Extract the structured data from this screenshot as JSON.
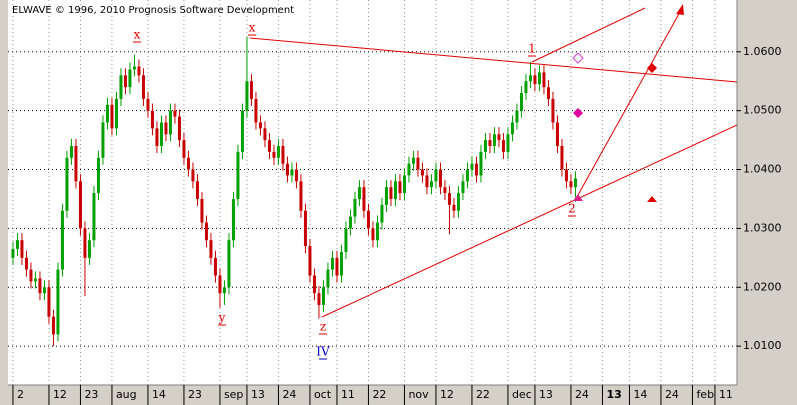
{
  "chart_data": {
    "type": "candlestick",
    "title": "ELWAVE © 1996, 2010 Prognosis Software Development",
    "annotations": [
      "x",
      "y",
      "x",
      "z",
      "IV",
      "1",
      "2"
    ],
    "up_color": "#00a000",
    "down_color": "#c80000",
    "grid": true,
    "xlim": [
      -1.1,
      160.9
    ],
    "xticks": [
      {
        "value": 0,
        "label": "2"
      },
      {
        "value": 8,
        "label": "12"
      },
      {
        "value": 15,
        "label": "23"
      },
      {
        "value": 22,
        "label": "aug"
      },
      {
        "value": 30,
        "label": "14"
      },
      {
        "value": 38,
        "label": "23"
      },
      {
        "value": 46,
        "label": "sep"
      },
      {
        "value": 52,
        "label": "13"
      },
      {
        "value": 59,
        "label": "24"
      },
      {
        "value": 66,
        "label": "oct"
      },
      {
        "value": 72,
        "label": "11"
      },
      {
        "value": 79,
        "label": "22"
      },
      {
        "value": 87,
        "label": "nov"
      },
      {
        "value": 94,
        "label": "12"
      },
      {
        "value": 102,
        "label": "22"
      },
      {
        "value": 110,
        "label": "dec"
      },
      {
        "value": 116,
        "label": "13"
      },
      {
        "value": 124,
        "label": "24"
      },
      {
        "value": 131,
        "label": "13"
      },
      {
        "value": 137,
        "label": "14"
      },
      {
        "value": 144,
        "label": "24"
      },
      {
        "value": 151,
        "label": "feb"
      },
      {
        "value": 156,
        "label": "11"
      }
    ],
    "ylim": [
      1.0034,
      1.0688
    ],
    "yticks": [
      {
        "value": 1.01,
        "label": "1.0100"
      },
      {
        "value": 1.02,
        "label": "1.0200"
      },
      {
        "value": 1.03,
        "label": "1.0300"
      },
      {
        "value": 1.04,
        "label": "1.0400"
      },
      {
        "value": 1.05,
        "label": "1.0500"
      },
      {
        "value": 1.06,
        "label": "1.0600"
      }
    ],
    "x": [
      0,
      1,
      2,
      3,
      4,
      5,
      6,
      7,
      8,
      9,
      10,
      11,
      12,
      13,
      14,
      15,
      16,
      17,
      18,
      19,
      20,
      21,
      22,
      23,
      24,
      25,
      26,
      27,
      28,
      29,
      30,
      31,
      32,
      33,
      34,
      35,
      36,
      37,
      38,
      39,
      40,
      41,
      42,
      43,
      44,
      45,
      46,
      47,
      48,
      49,
      50,
      51,
      52,
      53,
      54,
      55,
      56,
      57,
      58,
      59,
      60,
      61,
      62,
      63,
      64,
      65,
      66,
      67,
      68,
      69,
      70,
      71,
      72,
      73,
      74,
      75,
      76,
      77,
      78,
      79,
      80,
      81,
      82,
      83,
      84,
      85,
      86,
      87,
      88,
      89,
      90,
      91,
      92,
      93,
      94,
      95,
      96,
      97,
      98,
      99,
      100,
      101,
      102,
      103,
      104,
      105,
      106,
      107,
      108,
      109,
      110,
      111,
      112,
      113,
      114,
      115,
      116,
      117,
      118,
      119,
      120,
      121,
      122,
      123,
      124,
      125
    ],
    "open": [
      1.025,
      1.0265,
      1.028,
      1.025,
      1.023,
      1.021,
      1.0215,
      1.019,
      1.02,
      1.015,
      1.012,
      1.023,
      1.033,
      1.042,
      1.044,
      1.038,
      1.03,
      1.025,
      1.028,
      1.036,
      1.042,
      1.048,
      1.051,
      1.047,
      1.052,
      1.056,
      1.054,
      1.057,
      1.0575,
      1.056,
      1.052,
      1.05,
      1.047,
      1.044,
      1.048,
      1.046,
      1.05,
      1.049,
      1.045,
      1.042,
      1.04,
      1.038,
      1.035,
      1.031,
      1.028,
      1.025,
      1.022,
      1.019,
      1.02,
      1.028,
      1.035,
      1.043,
      1.05,
      1.055,
      1.052,
      1.048,
      1.047,
      1.045,
      1.043,
      1.042,
      1.044,
      1.041,
      1.039,
      1.04,
      1.038,
      1.033,
      1.027,
      1.022,
      1.019,
      1.017,
      1.02,
      1.023,
      1.025,
      1.022,
      1.026,
      1.03,
      1.032,
      1.035,
      1.037,
      1.033,
      1.03,
      1.028,
      1.031,
      1.034,
      1.037,
      1.035,
      1.038,
      1.036,
      1.039,
      1.041,
      1.042,
      1.04,
      1.039,
      1.037,
      1.038,
      1.04,
      1.037,
      1.036,
      1.034,
      1.033,
      1.036,
      1.038,
      1.04,
      1.041,
      1.039,
      1.043,
      1.045,
      1.044,
      1.046,
      1.045,
      1.043,
      1.046,
      1.048,
      1.05,
      1.053,
      1.055,
      1.056,
      1.0545,
      1.0565,
      1.054,
      1.052,
      1.048,
      1.044,
      1.04,
      1.038,
      1.037
    ],
    "high": [
      1.0277,
      1.0292,
      1.0292,
      1.0262,
      1.0242,
      1.0227,
      1.0227,
      1.0212,
      1.0212,
      1.0162,
      1.0242,
      1.0342,
      1.0432,
      1.0452,
      1.0452,
      1.0392,
      1.0312,
      1.0292,
      1.0372,
      1.0432,
      1.0492,
      1.0522,
      1.0522,
      1.0532,
      1.0572,
      1.0572,
      1.0582,
      1.0595,
      1.0587,
      1.0572,
      1.0532,
      1.0512,
      1.0482,
      1.0492,
      1.0492,
      1.0512,
      1.0512,
      1.0502,
      1.0462,
      1.0432,
      1.0412,
      1.0392,
      1.0362,
      1.0322,
      1.0292,
      1.0262,
      1.0232,
      1.0212,
      1.0292,
      1.0362,
      1.0442,
      1.0512,
      1.0625,
      1.0562,
      1.0532,
      1.0492,
      1.0482,
      1.0462,
      1.0442,
      1.0452,
      1.0452,
      1.0422,
      1.0412,
      1.0412,
      1.0392,
      1.0342,
      1.0282,
      1.0232,
      1.0202,
      1.0212,
      1.0242,
      1.0262,
      1.0262,
      1.0272,
      1.0312,
      1.0332,
      1.0362,
      1.0382,
      1.0382,
      1.0342,
      1.0312,
      1.0322,
      1.0352,
      1.0382,
      1.0382,
      1.0392,
      1.0392,
      1.0402,
      1.0422,
      1.0432,
      1.0432,
      1.0412,
      1.0402,
      1.0392,
      1.0412,
      1.0412,
      1.0382,
      1.0372,
      1.0352,
      1.0372,
      1.0392,
      1.0412,
      1.0422,
      1.0422,
      1.0442,
      1.0462,
      1.0462,
      1.0472,
      1.0472,
      1.0462,
      1.0472,
      1.0492,
      1.0512,
      1.0542,
      1.0562,
      1.0583,
      1.0572,
      1.0577,
      1.0577,
      1.0552,
      1.0532,
      1.0492,
      1.0452,
      1.0412,
      1.0392,
      1.0397
    ],
    "low": [
      1.0238,
      1.0253,
      1.0238,
      1.0218,
      1.0198,
      1.0198,
      1.0178,
      1.0178,
      1.0138,
      1.01,
      1.0108,
      1.0218,
      1.0318,
      1.0408,
      1.0368,
      1.0288,
      1.0185,
      1.0238,
      1.0268,
      1.0348,
      1.0408,
      1.0468,
      1.0458,
      1.0458,
      1.0508,
      1.0528,
      1.0528,
      1.0558,
      1.0548,
      1.0508,
      1.0488,
      1.0458,
      1.0428,
      1.0428,
      1.0448,
      1.0448,
      1.0478,
      1.0438,
      1.0408,
      1.0388,
      1.0368,
      1.0338,
      1.0298,
      1.0268,
      1.0238,
      1.0208,
      1.0165,
      1.017,
      1.0188,
      1.0268,
      1.0338,
      1.0418,
      1.0488,
      1.0508,
      1.0468,
      1.0458,
      1.0438,
      1.0418,
      1.0408,
      1.0408,
      1.0398,
      1.0378,
      1.0378,
      1.0368,
      1.0318,
      1.0258,
      1.0208,
      1.0178,
      1.0147,
      1.0158,
      1.0188,
      1.0218,
      1.0208,
      1.0208,
      1.0248,
      1.0288,
      1.0308,
      1.0338,
      1.0318,
      1.0288,
      1.0268,
      1.0268,
      1.0298,
      1.0328,
      1.0338,
      1.0338,
      1.0348,
      1.0348,
      1.0378,
      1.0398,
      1.0388,
      1.0378,
      1.0358,
      1.0358,
      1.0368,
      1.0358,
      1.0348,
      1.029,
      1.0318,
      1.0318,
      1.0348,
      1.0368,
      1.0388,
      1.0378,
      1.0378,
      1.0418,
      1.0428,
      1.0428,
      1.0438,
      1.0418,
      1.0418,
      1.0448,
      1.0468,
      1.0488,
      1.0518,
      1.0538,
      1.0533,
      1.0533,
      1.0528,
      1.0508,
      1.0468,
      1.0428,
      1.0388,
      1.0368,
      1.0358,
      1.0345
    ],
    "close": [
      1.0265,
      1.028,
      1.025,
      1.023,
      1.021,
      1.0215,
      1.019,
      1.02,
      1.015,
      1.012,
      1.023,
      1.033,
      1.042,
      1.044,
      1.038,
      1.03,
      1.025,
      1.028,
      1.036,
      1.042,
      1.048,
      1.051,
      1.047,
      1.052,
      1.056,
      1.054,
      1.057,
      1.0575,
      1.056,
      1.052,
      1.05,
      1.047,
      1.044,
      1.048,
      1.046,
      1.05,
      1.049,
      1.045,
      1.042,
      1.04,
      1.038,
      1.035,
      1.031,
      1.028,
      1.025,
      1.022,
      1.019,
      1.02,
      1.028,
      1.035,
      1.043,
      1.05,
      1.055,
      1.052,
      1.048,
      1.047,
      1.045,
      1.043,
      1.042,
      1.044,
      1.041,
      1.039,
      1.04,
      1.038,
      1.033,
      1.027,
      1.022,
      1.019,
      1.017,
      1.02,
      1.023,
      1.025,
      1.022,
      1.026,
      1.03,
      1.032,
      1.035,
      1.037,
      1.033,
      1.03,
      1.028,
      1.031,
      1.034,
      1.037,
      1.035,
      1.038,
      1.036,
      1.039,
      1.041,
      1.042,
      1.04,
      1.039,
      1.037,
      1.038,
      1.04,
      1.037,
      1.036,
      1.034,
      1.033,
      1.036,
      1.038,
      1.04,
      1.041,
      1.039,
      1.043,
      1.045,
      1.044,
      1.046,
      1.045,
      1.043,
      1.046,
      1.048,
      1.05,
      1.053,
      1.055,
      1.056,
      1.0545,
      1.0565,
      1.054,
      1.052,
      1.048,
      1.044,
      1.04,
      1.038,
      1.037,
      1.0385
    ]
  }
}
